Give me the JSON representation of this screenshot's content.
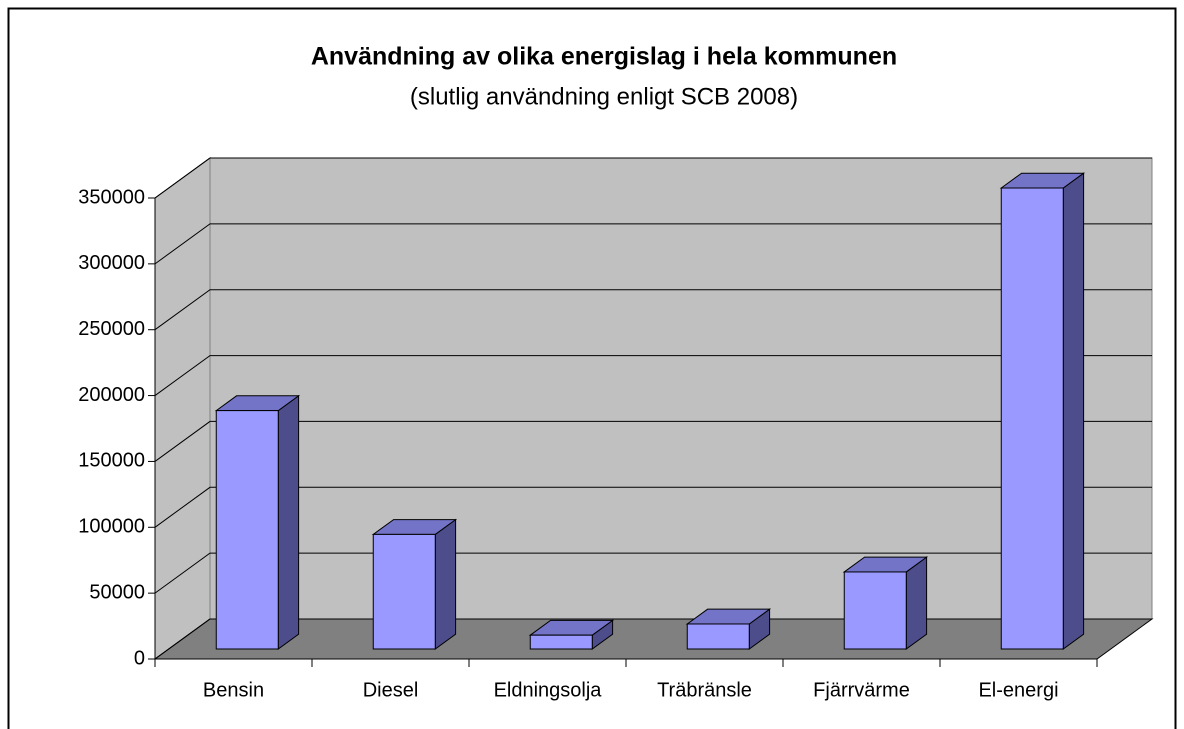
{
  "chart_data": {
    "type": "bar3d",
    "title": "Användning av olika energislag i hela kommunen",
    "subtitle": "(slutlig användning enligt SCB 2008)",
    "categories": [
      "Bensin",
      "Diesel",
      "Eldningsolja",
      "Träbränsle",
      "Fjärrvärme",
      "El-energi"
    ],
    "values": [
      181000,
      87000,
      10500,
      19000,
      58500,
      350000
    ],
    "color": "#9999ff",
    "ylim": [
      0,
      350000
    ],
    "yticks": [
      0,
      50000,
      100000,
      150000,
      200000,
      250000,
      300000,
      350000
    ],
    "grid": true
  }
}
